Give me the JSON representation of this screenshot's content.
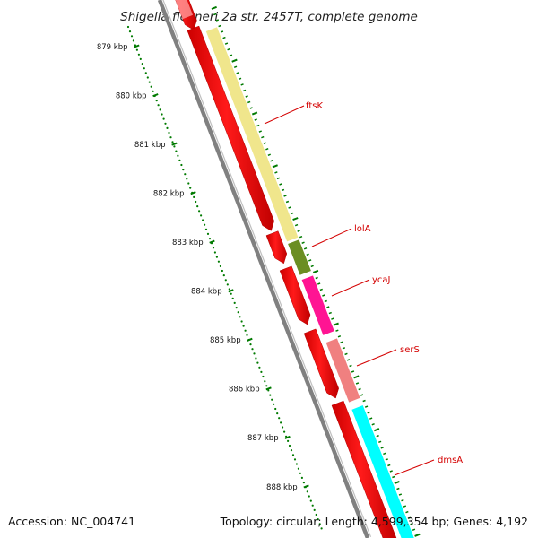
{
  "title": "Shigella flexneri 2a str. 2457T, complete genome",
  "footer": {
    "accession": "Accession: NC_004741",
    "summary": "Topology: circular; Length: 4,599,354 bp; Genes: 4,192"
  },
  "ruler": {
    "unit": "kbp",
    "ticks": [
      "879 kbp",
      "880 kbp",
      "881 kbp",
      "882 kbp",
      "883 kbp",
      "884 kbp",
      "885 kbp",
      "886 kbp",
      "887 kbp",
      "888 kbp"
    ]
  },
  "genes": [
    {
      "name": "ftsK",
      "color": "#f0e68c"
    },
    {
      "name": "lolA",
      "color": "#6b8e23"
    },
    {
      "name": "ycaJ",
      "color": "#ff1493"
    },
    {
      "name": "serS",
      "color": "#f08080"
    },
    {
      "name": "dmsA",
      "color": "#00ffff"
    }
  ],
  "colors": {
    "backbone": "#808080",
    "cds": "#ff0000",
    "tick": "#007a00",
    "label_line": "#d40000"
  }
}
